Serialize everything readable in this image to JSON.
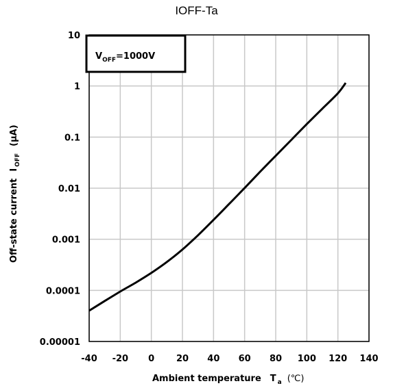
{
  "chart_data": {
    "type": "line",
    "title": "IOFF-Ta",
    "xlabel_main": "Ambient temperature",
    "xlabel_symbol": "T",
    "xlabel_symbol_sub": "a",
    "xlabel_unit": "(℃)",
    "ylabel_main": "Off-state current",
    "ylabel_symbol": "I",
    "ylabel_symbol_sub": "OFF",
    "ylabel_unit": "(μA)",
    "annotation_main": "V",
    "annotation_sub": "OFF",
    "annotation_rest": "=1000V",
    "xlim": [
      -40,
      140
    ],
    "ylim": [
      1e-05,
      10
    ],
    "yscale": "log",
    "grid": true,
    "x_ticks": [
      "-40",
      "-20",
      "0",
      "20",
      "40",
      "60",
      "80",
      "100",
      "120",
      "140"
    ],
    "y_ticks": [
      "10",
      "1",
      "0.1",
      "0.01",
      "0.001",
      "0.0001",
      "0.00001"
    ],
    "series": [
      {
        "x": [
          -40,
          -30,
          -20,
          -10,
          0,
          10,
          20,
          30,
          40,
          50,
          60,
          70,
          80,
          90,
          100,
          110,
          120,
          125
        ],
        "y": [
          4e-05,
          6.2e-05,
          9.5e-05,
          0.000142,
          0.00022,
          0.00036,
          0.00063,
          0.0012,
          0.0024,
          0.0049,
          0.0101,
          0.021,
          0.043,
          0.088,
          0.18,
          0.36,
          0.72,
          1.15
        ]
      }
    ]
  },
  "colors": {
    "line": "#000000",
    "grid": "#c8c8c8",
    "frame": "#000000"
  }
}
